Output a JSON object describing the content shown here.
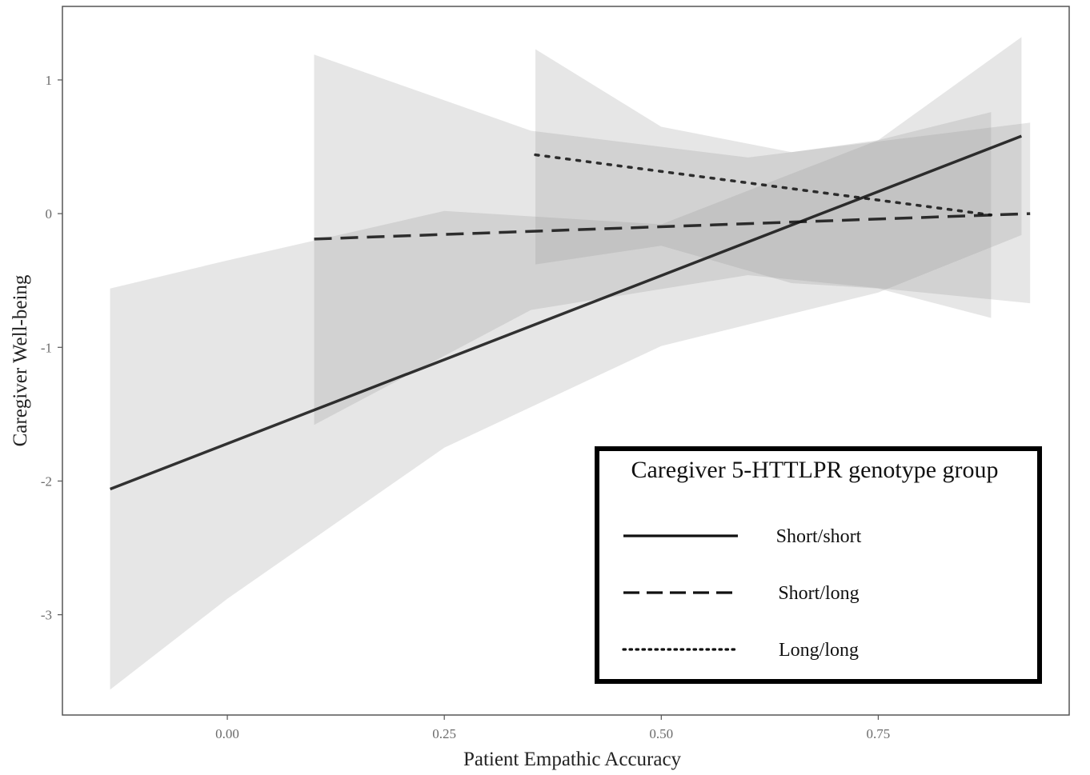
{
  "chart_data": {
    "type": "line",
    "xlabel": "Patient Empathic Accuracy",
    "ylabel": "Caregiver Well-being",
    "xlim": [
      -0.19,
      0.97
    ],
    "ylim": [
      -3.75,
      1.55
    ],
    "x_ticks": [
      0.0,
      0.25,
      0.5,
      0.75
    ],
    "x_tick_labels": [
      "0.00",
      "0.25",
      "0.50",
      "0.75"
    ],
    "y_ticks": [
      1,
      0,
      -1,
      -2,
      -3
    ],
    "y_tick_labels": [
      "1",
      "0",
      "-1",
      "-2",
      "-3"
    ],
    "grid": false,
    "legend": {
      "title": "Caregiver 5-HTTLPR genotype group",
      "position": "bottom-right",
      "border": "thick-black"
    },
    "series": [
      {
        "name": "Short/short",
        "linestyle": "solid",
        "color": "#111111",
        "x": [
          -0.135,
          0.915
        ],
        "y": [
          -2.06,
          0.58
        ],
        "ci_x": [
          -0.135,
          0.0,
          0.25,
          0.5,
          0.75,
          0.915
        ],
        "ci_upper": [
          -0.56,
          -0.35,
          0.02,
          -0.08,
          0.55,
          1.32
        ],
        "ci_lower": [
          -3.56,
          -2.88,
          -1.75,
          -0.99,
          -0.59,
          -0.16
        ]
      },
      {
        "name": "Short/long",
        "linestyle": "dashed",
        "color": "#111111",
        "x": [
          0.1,
          0.925
        ],
        "y": [
          -0.19,
          0.0
        ],
        "ci_x": [
          0.1,
          0.35,
          0.6,
          0.925
        ],
        "ci_upper": [
          1.19,
          0.62,
          0.42,
          0.68
        ],
        "ci_lower": [
          -1.58,
          -0.72,
          -0.46,
          -0.67
        ]
      },
      {
        "name": "Long/long",
        "linestyle": "dotted",
        "color": "#111111",
        "x": [
          0.355,
          0.88
        ],
        "y": [
          0.44,
          -0.01
        ],
        "ci_x": [
          0.355,
          0.5,
          0.65,
          0.75,
          0.88
        ],
        "ci_upper": [
          1.23,
          0.65,
          0.46,
          0.55,
          0.76
        ],
        "ci_lower": [
          -0.38,
          -0.24,
          -0.52,
          -0.56,
          -0.78
        ]
      }
    ]
  }
}
